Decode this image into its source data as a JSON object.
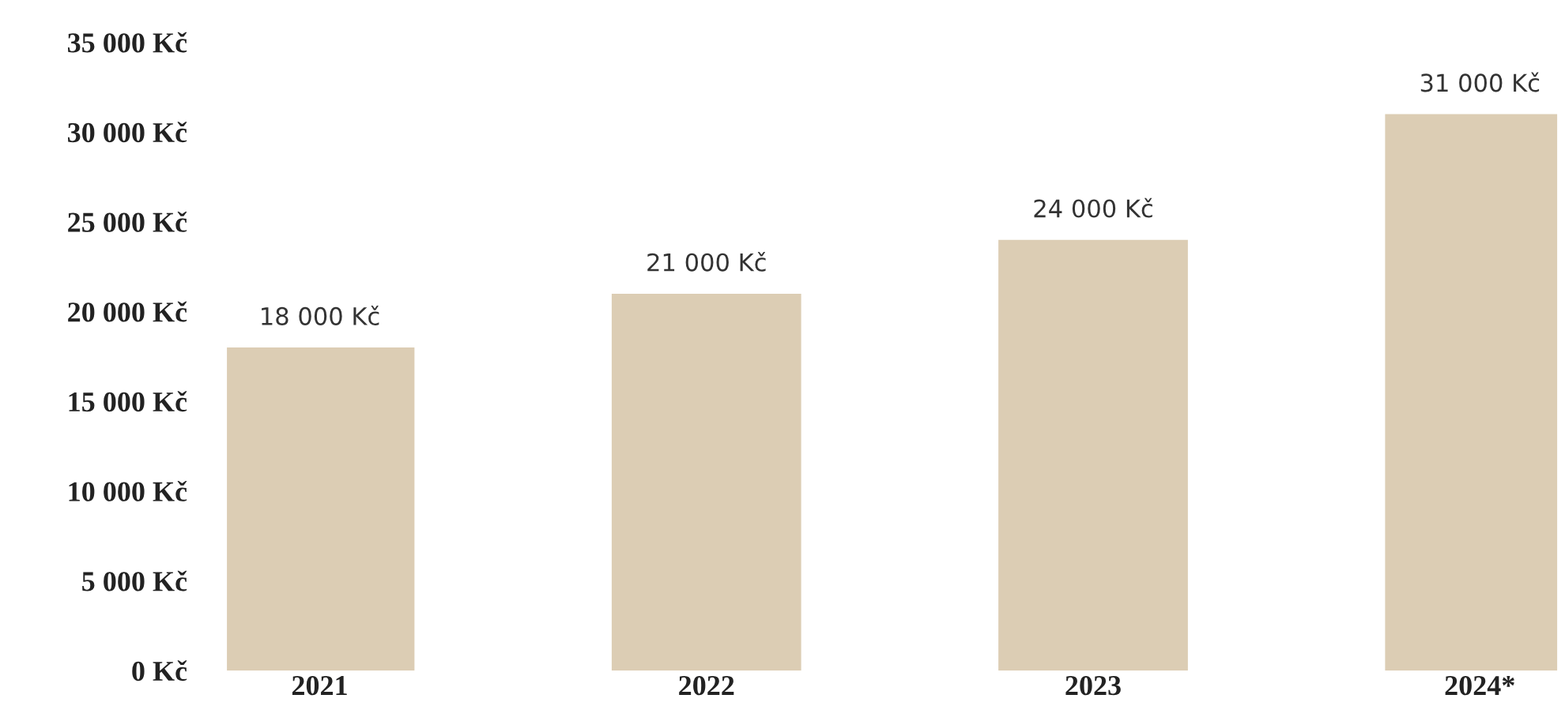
{
  "chart_data": {
    "type": "bar",
    "categories": [
      "2021",
      "2022",
      "2023",
      "2024*"
    ],
    "values": [
      18000,
      21000,
      24000,
      31000
    ],
    "value_labels": [
      "18 000 Kč",
      "21 000 Kč",
      "24 000 Kč",
      "31 000 Kč"
    ],
    "color": "#dccdb4",
    "ylim": [
      0,
      35000
    ],
    "yticks": [
      {
        "value": 0,
        "label": "0 Kč"
      },
      {
        "value": 5000,
        "label": "5 000 Kč"
      },
      {
        "value": 10000,
        "label": "10 000 Kč"
      },
      {
        "value": 15000,
        "label": "15 000 Kč"
      },
      {
        "value": 20000,
        "label": "20 000 Kč"
      },
      {
        "value": 25000,
        "label": "25 000 Kč"
      },
      {
        "value": 30000,
        "label": "30 000 Kč"
      },
      {
        "value": 35000,
        "label": "35 000 Kč"
      }
    ],
    "grid": false,
    "legend": false
  }
}
